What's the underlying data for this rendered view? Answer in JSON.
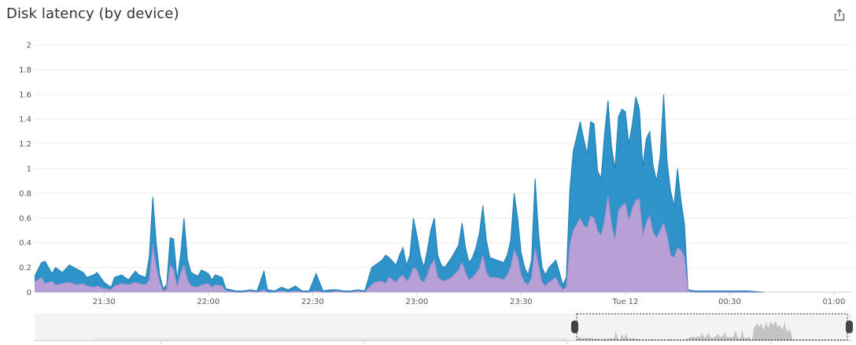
{
  "title": "Disk latency (by device)",
  "icons": {
    "share": "share-export-icon"
  },
  "colors": {
    "series1": "#2e93c9",
    "series2": "#b6a0d6",
    "grid": "#ececec",
    "navigator_fill": "#d7d7d7",
    "navigator_bg": "#f3f3f3"
  },
  "chart_data": {
    "type": "area",
    "stacked": true,
    "ylim": [
      0,
      2
    ],
    "yticks": [
      "0",
      "0.2",
      "0.4",
      "0.6",
      "0.8",
      "1",
      "1.2",
      "1.4",
      "1.6",
      "1.8",
      "2"
    ],
    "xticks": [
      "21:30",
      "22:00",
      "22:30",
      "23:00",
      "23:30",
      "Tue 12",
      "00:30",
      "01:00"
    ],
    "x_start": "21:10",
    "x_end": "01:05",
    "grid": true,
    "legend": "none",
    "series": [
      {
        "color": "#b6a0d6",
        "points": [
          [
            "21:10",
            0.08
          ],
          [
            "21:12",
            0.12
          ],
          [
            "21:13",
            0.07
          ],
          [
            "21:15",
            0.09
          ],
          [
            "21:16",
            0.06
          ],
          [
            "21:18",
            0.07
          ],
          [
            "21:20",
            0.08
          ],
          [
            "21:22",
            0.06
          ],
          [
            "21:24",
            0.07
          ],
          [
            "21:25",
            0.05
          ],
          [
            "21:27",
            0.04
          ],
          [
            "21:28",
            0.05
          ],
          [
            "21:30",
            0.03
          ],
          [
            "21:32",
            0.02
          ],
          [
            "21:33",
            0.05
          ],
          [
            "21:35",
            0.07
          ],
          [
            "21:37",
            0.06
          ],
          [
            "21:39",
            0.08
          ],
          [
            "21:40",
            0.07
          ],
          [
            "21:42",
            0.06
          ],
          [
            "21:43",
            0.1
          ],
          [
            "21:44",
            0.38
          ],
          [
            "21:45",
            0.2
          ],
          [
            "21:46",
            0.08
          ],
          [
            "21:47",
            0.01
          ],
          [
            "21:48",
            0.02
          ],
          [
            "21:49",
            0.22
          ],
          [
            "21:50",
            0.18
          ],
          [
            "21:51",
            0.04
          ],
          [
            "21:52",
            0.15
          ],
          [
            "21:53",
            0.22
          ],
          [
            "21:54",
            0.1
          ],
          [
            "21:55",
            0.05
          ],
          [
            "21:57",
            0.04
          ],
          [
            "21:58",
            0.06
          ],
          [
            "22:00",
            0.07
          ],
          [
            "22:01",
            0.04
          ],
          [
            "22:02",
            0.06
          ],
          [
            "22:04",
            0.05
          ],
          [
            "22:05",
            0.01
          ],
          [
            "22:08",
            0.0
          ],
          [
            "22:10",
            0.0
          ],
          [
            "22:12",
            0.01
          ],
          [
            "22:14",
            0.0
          ],
          [
            "22:16",
            0.02
          ],
          [
            "22:17",
            0.0
          ],
          [
            "22:19",
            0.0
          ],
          [
            "22:21",
            0.01
          ],
          [
            "22:23",
            0.0
          ],
          [
            "22:25",
            0.01
          ],
          [
            "22:27",
            0.0
          ],
          [
            "22:29",
            0.0
          ],
          [
            "22:31",
            0.01
          ],
          [
            "22:33",
            0.0
          ],
          [
            "22:35",
            0.0
          ],
          [
            "22:37",
            0.01
          ],
          [
            "22:39",
            0.0
          ],
          [
            "22:41",
            0.0
          ],
          [
            "22:43",
            0.01
          ],
          [
            "22:45",
            0.0
          ],
          [
            "22:47",
            0.06
          ],
          [
            "22:48",
            0.08
          ],
          [
            "22:50",
            0.09
          ],
          [
            "22:51",
            0.07
          ],
          [
            "22:52",
            0.12
          ],
          [
            "22:53",
            0.1
          ],
          [
            "22:54",
            0.08
          ],
          [
            "22:55",
            0.12
          ],
          [
            "22:56",
            0.14
          ],
          [
            "22:57",
            0.09
          ],
          [
            "22:58",
            0.12
          ],
          [
            "22:59",
            0.2
          ],
          [
            "23:00",
            0.18
          ],
          [
            "23:01",
            0.1
          ],
          [
            "23:02",
            0.08
          ],
          [
            "23:03",
            0.14
          ],
          [
            "23:04",
            0.22
          ],
          [
            "23:05",
            0.26
          ],
          [
            "23:06",
            0.12
          ],
          [
            "23:07",
            0.1
          ],
          [
            "23:08",
            0.09
          ],
          [
            "23:10",
            0.12
          ],
          [
            "23:12",
            0.18
          ],
          [
            "23:13",
            0.24
          ],
          [
            "23:14",
            0.16
          ],
          [
            "23:15",
            0.1
          ],
          [
            "23:16",
            0.12
          ],
          [
            "23:17",
            0.15
          ],
          [
            "23:18",
            0.2
          ],
          [
            "23:19",
            0.3
          ],
          [
            "23:20",
            0.16
          ],
          [
            "23:21",
            0.12
          ],
          [
            "23:23",
            0.12
          ],
          [
            "23:25",
            0.1
          ],
          [
            "23:26",
            0.14
          ],
          [
            "23:27",
            0.2
          ],
          [
            "23:28",
            0.34
          ],
          [
            "23:29",
            0.28
          ],
          [
            "23:30",
            0.14
          ],
          [
            "23:31",
            0.08
          ],
          [
            "23:32",
            0.06
          ],
          [
            "23:33",
            0.12
          ],
          [
            "23:34",
            0.36
          ],
          [
            "23:35",
            0.22
          ],
          [
            "23:36",
            0.08
          ],
          [
            "23:37",
            0.05
          ],
          [
            "23:38",
            0.08
          ],
          [
            "23:40",
            0.12
          ],
          [
            "23:41",
            0.06
          ],
          [
            "23:42",
            0.02
          ],
          [
            "23:43",
            0.04
          ],
          [
            "23:44",
            0.38
          ],
          [
            "23:45",
            0.5
          ],
          [
            "23:46",
            0.55
          ],
          [
            "23:47",
            0.6
          ],
          [
            "23:48",
            0.54
          ],
          [
            "23:49",
            0.52
          ],
          [
            "23:50",
            0.62
          ],
          [
            "23:51",
            0.6
          ],
          [
            "23:52",
            0.5
          ],
          [
            "23:53",
            0.46
          ],
          [
            "23:54",
            0.58
          ],
          [
            "23:55",
            0.78
          ],
          [
            "23:56",
            0.55
          ],
          [
            "23:57",
            0.42
          ],
          [
            "23:58",
            0.66
          ],
          [
            "23:59",
            0.7
          ],
          [
            "00:00",
            0.72
          ],
          [
            "00:01",
            0.58
          ],
          [
            "00:02",
            0.68
          ],
          [
            "00:03",
            0.74
          ],
          [
            "00:04",
            0.76
          ],
          [
            "00:05",
            0.46
          ],
          [
            "00:06",
            0.56
          ],
          [
            "00:07",
            0.62
          ],
          [
            "00:08",
            0.48
          ],
          [
            "00:09",
            0.44
          ],
          [
            "00:10",
            0.5
          ],
          [
            "00:11",
            0.56
          ],
          [
            "00:12",
            0.46
          ],
          [
            "00:13",
            0.3
          ],
          [
            "00:14",
            0.28
          ],
          [
            "00:15",
            0.36
          ],
          [
            "00:16",
            0.34
          ],
          [
            "00:17",
            0.28
          ],
          [
            "00:18",
            0.01
          ],
          [
            "00:20",
            0.0
          ],
          [
            "00:25",
            0.0
          ],
          [
            "00:30",
            0.0
          ],
          [
            "00:35",
            0.0
          ],
          [
            "00:40",
            0.0
          ]
        ]
      },
      {
        "color": "#2e93c9",
        "points": [
          [
            "21:10",
            0.13
          ],
          [
            "21:12",
            0.24
          ],
          [
            "21:13",
            0.25
          ],
          [
            "21:15",
            0.15
          ],
          [
            "21:16",
            0.2
          ],
          [
            "21:18",
            0.16
          ],
          [
            "21:20",
            0.22
          ],
          [
            "21:22",
            0.19
          ],
          [
            "21:24",
            0.16
          ],
          [
            "21:25",
            0.12
          ],
          [
            "21:27",
            0.14
          ],
          [
            "21:28",
            0.16
          ],
          [
            "21:30",
            0.08
          ],
          [
            "21:32",
            0.04
          ],
          [
            "21:33",
            0.12
          ],
          [
            "21:35",
            0.14
          ],
          [
            "21:37",
            0.1
          ],
          [
            "21:39",
            0.17
          ],
          [
            "21:40",
            0.14
          ],
          [
            "21:42",
            0.12
          ],
          [
            "21:43",
            0.29
          ],
          [
            "21:44",
            0.77
          ],
          [
            "21:45",
            0.4
          ],
          [
            "21:46",
            0.14
          ],
          [
            "21:47",
            0.03
          ],
          [
            "21:48",
            0.06
          ],
          [
            "21:49",
            0.44
          ],
          [
            "21:50",
            0.43
          ],
          [
            "21:51",
            0.1
          ],
          [
            "21:52",
            0.3
          ],
          [
            "21:53",
            0.6
          ],
          [
            "21:54",
            0.26
          ],
          [
            "21:55",
            0.16
          ],
          [
            "21:57",
            0.13
          ],
          [
            "21:58",
            0.18
          ],
          [
            "22:00",
            0.15
          ],
          [
            "22:01",
            0.1
          ],
          [
            "22:02",
            0.14
          ],
          [
            "22:04",
            0.12
          ],
          [
            "22:05",
            0.03
          ],
          [
            "22:08",
            0.01
          ],
          [
            "22:10",
            0.01
          ],
          [
            "22:12",
            0.02
          ],
          [
            "22:14",
            0.01
          ],
          [
            "22:16",
            0.17
          ],
          [
            "22:17",
            0.02
          ],
          [
            "22:19",
            0.01
          ],
          [
            "22:21",
            0.04
          ],
          [
            "22:23",
            0.02
          ],
          [
            "22:25",
            0.05
          ],
          [
            "22:27",
            0.01
          ],
          [
            "22:29",
            0.01
          ],
          [
            "22:31",
            0.15
          ],
          [
            "22:33",
            0.01
          ],
          [
            "22:35",
            0.02
          ],
          [
            "22:37",
            0.02
          ],
          [
            "22:39",
            0.01
          ],
          [
            "22:41",
            0.01
          ],
          [
            "22:43",
            0.02
          ],
          [
            "22:45",
            0.01
          ],
          [
            "22:47",
            0.2
          ],
          [
            "22:48",
            0.22
          ],
          [
            "22:50",
            0.26
          ],
          [
            "22:51",
            0.3
          ],
          [
            "22:52",
            0.28
          ],
          [
            "22:53",
            0.25
          ],
          [
            "22:54",
            0.22
          ],
          [
            "22:55",
            0.3
          ],
          [
            "22:56",
            0.36
          ],
          [
            "22:57",
            0.22
          ],
          [
            "22:58",
            0.3
          ],
          [
            "22:59",
            0.6
          ],
          [
            "23:00",
            0.46
          ],
          [
            "23:01",
            0.3
          ],
          [
            "23:02",
            0.2
          ],
          [
            "23:03",
            0.34
          ],
          [
            "23:04",
            0.5
          ],
          [
            "23:05",
            0.6
          ],
          [
            "23:06",
            0.3
          ],
          [
            "23:07",
            0.22
          ],
          [
            "23:08",
            0.2
          ],
          [
            "23:10",
            0.28
          ],
          [
            "23:12",
            0.38
          ],
          [
            "23:13",
            0.56
          ],
          [
            "23:14",
            0.36
          ],
          [
            "23:15",
            0.24
          ],
          [
            "23:16",
            0.28
          ],
          [
            "23:17",
            0.36
          ],
          [
            "23:18",
            0.48
          ],
          [
            "23:19",
            0.7
          ],
          [
            "23:20",
            0.42
          ],
          [
            "23:21",
            0.28
          ],
          [
            "23:23",
            0.26
          ],
          [
            "23:25",
            0.24
          ],
          [
            "23:26",
            0.3
          ],
          [
            "23:27",
            0.42
          ],
          [
            "23:28",
            0.8
          ],
          [
            "23:29",
            0.6
          ],
          [
            "23:30",
            0.32
          ],
          [
            "23:31",
            0.2
          ],
          [
            "23:32",
            0.14
          ],
          [
            "23:33",
            0.26
          ],
          [
            "23:34",
            0.92
          ],
          [
            "23:35",
            0.48
          ],
          [
            "23:36",
            0.2
          ],
          [
            "23:37",
            0.14
          ],
          [
            "23:38",
            0.2
          ],
          [
            "23:40",
            0.26
          ],
          [
            "23:41",
            0.16
          ],
          [
            "23:42",
            0.06
          ],
          [
            "23:43",
            0.12
          ],
          [
            "23:44",
            0.82
          ],
          [
            "23:45",
            1.14
          ],
          [
            "23:46",
            1.26
          ],
          [
            "23:47",
            1.38
          ],
          [
            "23:48",
            1.24
          ],
          [
            "23:49",
            1.12
          ],
          [
            "23:50",
            1.38
          ],
          [
            "23:51",
            1.36
          ],
          [
            "23:52",
            0.98
          ],
          [
            "23:53",
            0.92
          ],
          [
            "23:54",
            1.28
          ],
          [
            "23:55",
            1.55
          ],
          [
            "23:56",
            1.18
          ],
          [
            "23:57",
            1.0
          ],
          [
            "23:58",
            1.42
          ],
          [
            "23:59",
            1.48
          ],
          [
            "00:00",
            1.46
          ],
          [
            "00:01",
            1.2
          ],
          [
            "00:02",
            1.36
          ],
          [
            "00:03",
            1.58
          ],
          [
            "00:04",
            1.48
          ],
          [
            "00:05",
            1.02
          ],
          [
            "00:06",
            1.24
          ],
          [
            "00:07",
            1.3
          ],
          [
            "00:08",
            1.02
          ],
          [
            "00:09",
            0.9
          ],
          [
            "00:10",
            1.1
          ],
          [
            "00:11",
            1.6
          ],
          [
            "00:12",
            1.06
          ],
          [
            "00:13",
            0.82
          ],
          [
            "00:14",
            0.7
          ],
          [
            "00:15",
            1.0
          ],
          [
            "00:16",
            0.74
          ],
          [
            "00:17",
            0.55
          ],
          [
            "00:18",
            0.02
          ],
          [
            "00:20",
            0.01
          ],
          [
            "00:25",
            0.01
          ],
          [
            "00:30",
            0.01
          ],
          [
            "00:35",
            0.01
          ],
          [
            "00:40",
            0.0
          ]
        ]
      }
    ]
  }
}
